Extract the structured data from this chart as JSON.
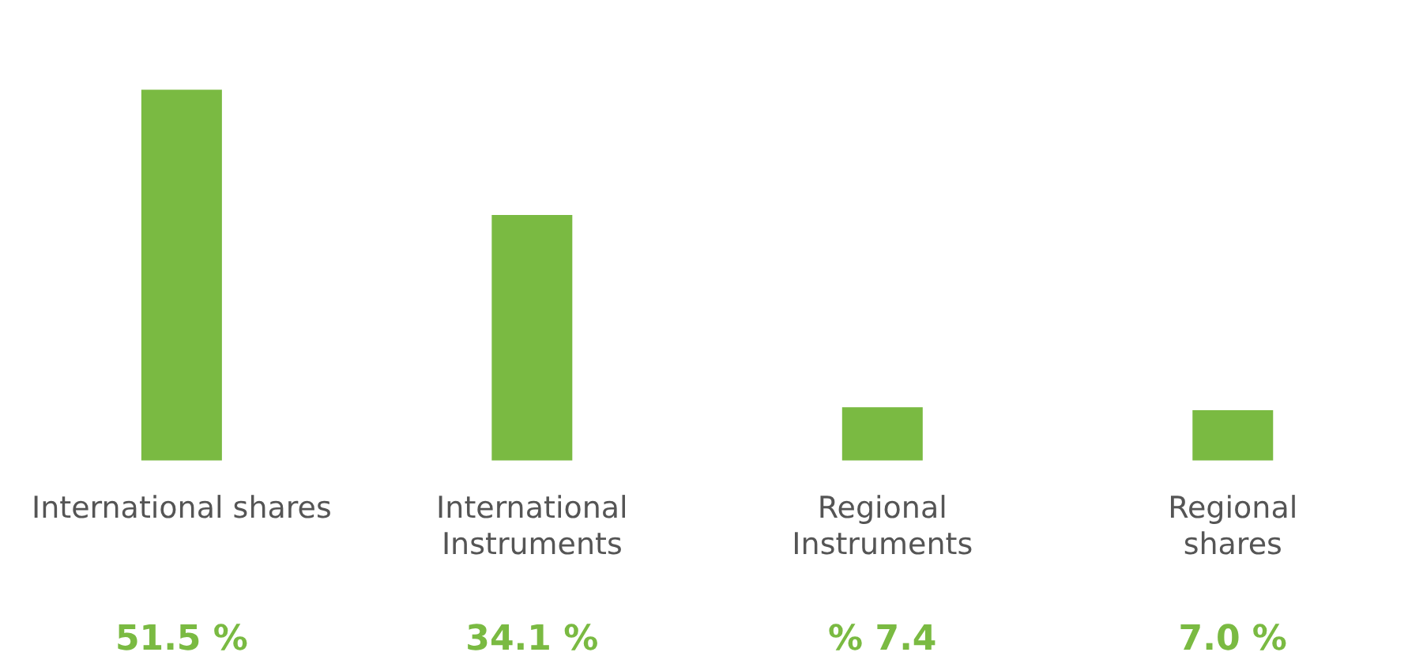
{
  "chart_data": {
    "type": "bar",
    "categories": [
      "International shares",
      "International\nInstruments",
      "Regional\nInstruments",
      "Regional\nshares"
    ],
    "values": [
      51.5,
      34.1,
      7.4,
      7.0
    ],
    "value_labels": [
      "51.5 %",
      "34.1 %",
      "% 7.4",
      "7.0 %"
    ],
    "color": "#7aba42",
    "grid": false,
    "legend": false
  }
}
